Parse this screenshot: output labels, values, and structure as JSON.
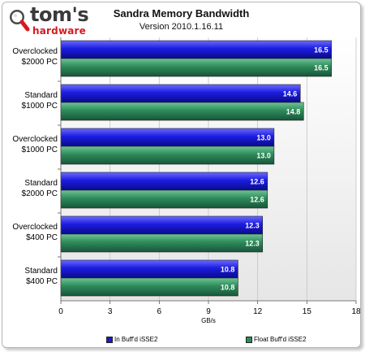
{
  "logo": {
    "name": "tom's",
    "sub": "hardware"
  },
  "chart_data": {
    "type": "bar",
    "orientation": "horizontal",
    "title": "Sandra Memory Bandwidth",
    "subtitle": "Version 2010.1.16.11",
    "xlabel": "GB/s",
    "ylabel": "",
    "xlim": [
      0,
      18
    ],
    "xticks": [
      0,
      3,
      6,
      9,
      12,
      15,
      18
    ],
    "grid": true,
    "legend_position": "bottom",
    "categories": [
      [
        "Overclocked",
        "$2000 PC"
      ],
      [
        "Standard",
        "$1000 PC"
      ],
      [
        "Overclocked",
        "$1000 PC"
      ],
      [
        "Standard",
        "$2000 PC"
      ],
      [
        "Overclocked",
        "$400 PC"
      ],
      [
        "Standard",
        "$400 PC"
      ]
    ],
    "series": [
      {
        "name": "In Buff'd iSSE2",
        "color": "#1a1acc",
        "values": [
          16.5,
          14.6,
          13.0,
          12.6,
          12.3,
          10.8
        ]
      },
      {
        "name": "Float Buff'd iSSE2",
        "color": "#2e8b5a",
        "values": [
          16.5,
          14.8,
          13.0,
          12.6,
          12.3,
          10.8
        ]
      }
    ]
  }
}
